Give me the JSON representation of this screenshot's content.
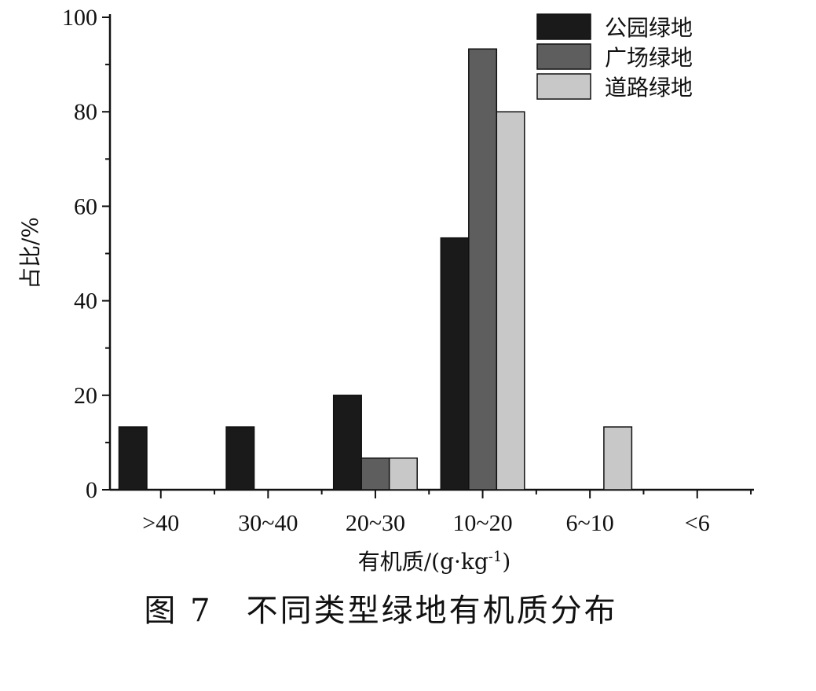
{
  "chart_data": {
    "type": "bar",
    "categories": [
      ">40",
      "30~40",
      "20~30",
      "10~20",
      "6~10",
      "<6"
    ],
    "series": [
      {
        "name": "公园绿地",
        "values": [
          13.3,
          13.3,
          20.0,
          53.3,
          0,
          0
        ],
        "color": "#1a1a1a"
      },
      {
        "name": "广场绿地",
        "values": [
          0,
          0,
          6.7,
          93.3,
          0,
          0
        ],
        "color": "#5e5e5e"
      },
      {
        "name": "道路绿地",
        "values": [
          0,
          0,
          6.7,
          80.0,
          13.3,
          0
        ],
        "color": "#c8c8c8"
      }
    ],
    "xlabel": "有机质/(g·kg",
    "xlabel_sup": "-1",
    "xlabel_close": ")",
    "ylabel": "占比/%",
    "ylim": [
      0,
      100
    ],
    "yticks": [
      0,
      20,
      40,
      60,
      80,
      100
    ],
    "legend_position": "top-right",
    "grid": false
  },
  "caption": "图 7　不同类型绿地有机质分布"
}
